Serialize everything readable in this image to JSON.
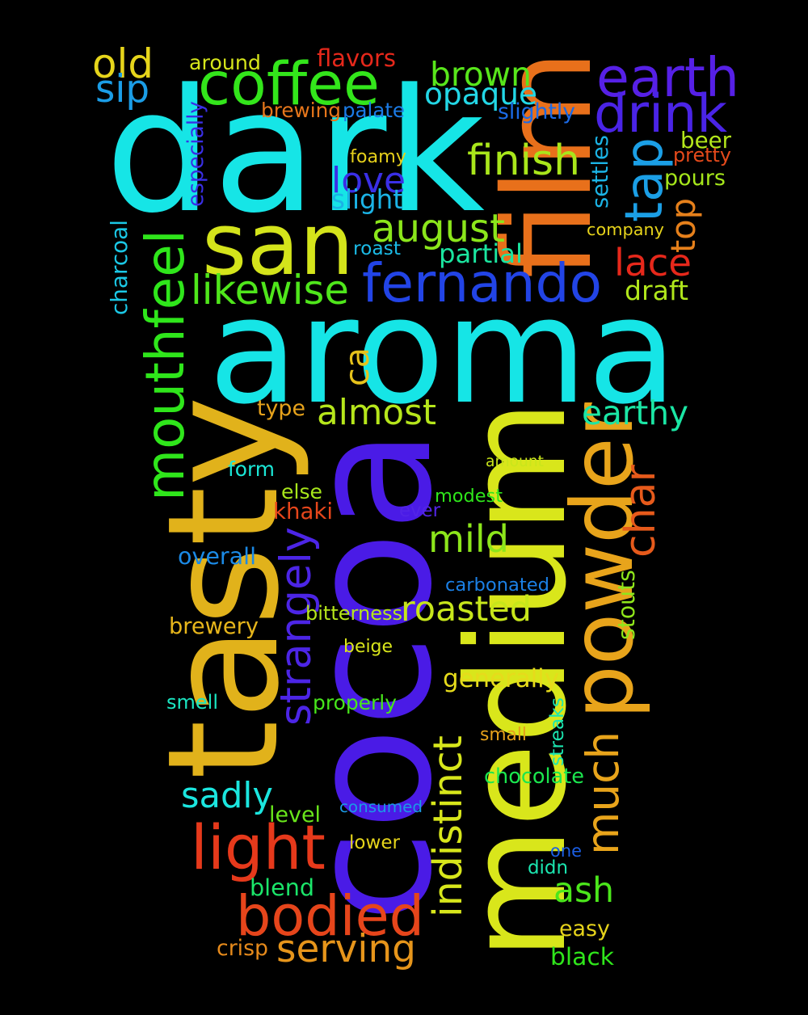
{
  "words": [
    {
      "text": "dark",
      "color": "#16E5E6",
      "rotated": false
    },
    {
      "text": "aroma",
      "color": "#16E5E6",
      "rotated": false
    },
    {
      "text": "cocoa",
      "color": "#4A1BE6",
      "rotated": true
    },
    {
      "text": "medium",
      "color": "#D9E61B",
      "rotated": true
    },
    {
      "text": "tasty",
      "color": "#E1B21B",
      "rotated": true
    },
    {
      "text": "san",
      "color": "#D4E41B",
      "rotated": false
    },
    {
      "text": "film",
      "color": "#E8701B",
      "rotated": true
    },
    {
      "text": "powder",
      "color": "#E8A41B",
      "rotated": true
    },
    {
      "text": "fernando",
      "color": "#2244E6",
      "rotated": false
    },
    {
      "text": "coffee",
      "color": "#33E61B",
      "rotated": false
    },
    {
      "text": "earth",
      "color": "#5620E6",
      "rotated": false
    },
    {
      "text": "drink",
      "color": "#4A24E6",
      "rotated": false
    },
    {
      "text": "mouthfeel",
      "color": "#2FE61B",
      "rotated": true
    },
    {
      "text": "strangely",
      "color": "#4C25E6",
      "rotated": true
    },
    {
      "text": "bodied",
      "color": "#E6451B",
      "rotated": false
    },
    {
      "text": "light",
      "color": "#E6391B",
      "rotated": false
    },
    {
      "text": "much",
      "color": "#E8A41B",
      "rotated": true
    },
    {
      "text": "char",
      "color": "#E65A1B",
      "rotated": true
    },
    {
      "text": "tap",
      "color": "#1B9FE6",
      "rotated": true
    },
    {
      "text": "august",
      "color": "#8BE61B",
      "rotated": false
    },
    {
      "text": "brown",
      "color": "#58E61B",
      "rotated": false
    },
    {
      "text": "opaque",
      "color": "#23D7E6",
      "rotated": false
    },
    {
      "text": "finish",
      "color": "#A9E61B",
      "rotated": false
    },
    {
      "text": "love",
      "color": "#3A2FE6",
      "rotated": false
    },
    {
      "text": "likewise",
      "color": "#4FE61B",
      "rotated": false
    },
    {
      "text": "lace",
      "color": "#E6281B",
      "rotated": false
    },
    {
      "text": "almost",
      "color": "#B6E61B",
      "rotated": false
    },
    {
      "text": "earthy",
      "color": "#1BE6A5",
      "rotated": false
    },
    {
      "text": "mild",
      "color": "#8DE61B",
      "rotated": false
    },
    {
      "text": "roasted",
      "color": "#C7E61B",
      "rotated": false
    },
    {
      "text": "indistinct",
      "color": "#D7E61B",
      "rotated": true
    },
    {
      "text": "serving",
      "color": "#E6951B",
      "rotated": false
    },
    {
      "text": "sadly",
      "color": "#1BE6DF",
      "rotated": false
    },
    {
      "text": "ash",
      "color": "#4BE61B",
      "rotated": false
    },
    {
      "text": "old",
      "color": "#E6D51B",
      "rotated": false
    },
    {
      "text": "sip",
      "color": "#1B9DE6",
      "rotated": false
    },
    {
      "text": "top",
      "color": "#E6801B",
      "rotated": true
    },
    {
      "text": "ca",
      "color": "#E6C21B",
      "rotated": true
    },
    {
      "text": "around",
      "color": "#D6E61B",
      "rotated": false
    },
    {
      "text": "flavors",
      "color": "#E6281B",
      "rotated": false
    },
    {
      "text": "brewing",
      "color": "#E6761B",
      "rotated": false
    },
    {
      "text": "palate",
      "color": "#1B7BE6",
      "rotated": false
    },
    {
      "text": "slightly",
      "color": "#1B6AE6",
      "rotated": false
    },
    {
      "text": "especially",
      "color": "#3A2FE6",
      "rotated": true
    },
    {
      "text": "settles",
      "color": "#1BB4E6",
      "rotated": true
    },
    {
      "text": "beer",
      "color": "#B3E61B",
      "rotated": false
    },
    {
      "text": "pretty",
      "color": "#E64A1B",
      "rotated": false
    },
    {
      "text": "foamy",
      "color": "#E6D01B",
      "rotated": false
    },
    {
      "text": "pours",
      "color": "#A5E61B",
      "rotated": false
    },
    {
      "text": "slight",
      "color": "#1BB3E6",
      "rotated": false
    },
    {
      "text": "charcoal",
      "color": "#1BC8E6",
      "rotated": true
    },
    {
      "text": "company",
      "color": "#E6D31B",
      "rotated": false
    },
    {
      "text": "roast",
      "color": "#1BBBE6",
      "rotated": false
    },
    {
      "text": "partial",
      "color": "#1BE6A0",
      "rotated": false
    },
    {
      "text": "draft",
      "color": "#B0E61B",
      "rotated": false
    },
    {
      "text": "type",
      "color": "#E6A21B",
      "rotated": false
    },
    {
      "text": "form",
      "color": "#1BE6D6",
      "rotated": false
    },
    {
      "text": "amount",
      "color": "#C9E61B",
      "rotated": false
    },
    {
      "text": "else",
      "color": "#A7E61B",
      "rotated": false
    },
    {
      "text": "modest",
      "color": "#2FE61B",
      "rotated": false
    },
    {
      "text": "khaki",
      "color": "#E6461B",
      "rotated": false
    },
    {
      "text": "ever",
      "color": "#5224E6",
      "rotated": false
    },
    {
      "text": "overall",
      "color": "#1B8AE6",
      "rotated": false
    },
    {
      "text": "carbonated",
      "color": "#1B80E6",
      "rotated": false
    },
    {
      "text": "stouts",
      "color": "#8FE61B",
      "rotated": true
    },
    {
      "text": "bitterness",
      "color": "#B6E61B",
      "rotated": false
    },
    {
      "text": "brewery",
      "color": "#E6B51B",
      "rotated": false
    },
    {
      "text": "beige",
      "color": "#D9E61B",
      "rotated": false
    },
    {
      "text": "generally",
      "color": "#E6DB1B",
      "rotated": false
    },
    {
      "text": "smell",
      "color": "#1BE6C2",
      "rotated": false
    },
    {
      "text": "properly",
      "color": "#47E61B",
      "rotated": false
    },
    {
      "text": "streaks",
      "color": "#1BE6B0",
      "rotated": true
    },
    {
      "text": "small",
      "color": "#E6A11B",
      "rotated": false
    },
    {
      "text": "chocolate",
      "color": "#1BE64E",
      "rotated": false
    },
    {
      "text": "level",
      "color": "#69E61B",
      "rotated": false
    },
    {
      "text": "consumed",
      "color": "#1B9AE6",
      "rotated": false
    },
    {
      "text": "lower",
      "color": "#E6D51B",
      "rotated": false
    },
    {
      "text": "one",
      "color": "#1B5FE6",
      "rotated": false
    },
    {
      "text": "didn",
      "color": "#1BE6B0",
      "rotated": false
    },
    {
      "text": "blend",
      "color": "#1BE66A",
      "rotated": false
    },
    {
      "text": "easy",
      "color": "#E6D31B",
      "rotated": false
    },
    {
      "text": "crisp",
      "color": "#E68A1B",
      "rotated": false
    },
    {
      "text": "black",
      "color": "#2FE61B",
      "rotated": false
    }
  ]
}
